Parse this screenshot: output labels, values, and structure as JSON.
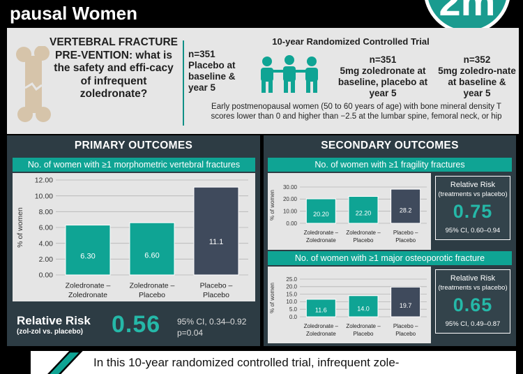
{
  "header": {
    "title": "pausal Women",
    "logo_text": "2m",
    "logo_color": "#1a9b8f"
  },
  "question": "VERTEBRAL FRACTURE PRE-VENTION: what is the safety and effi-cacy of infrequent zoledronate?",
  "trial": {
    "title": "10-year Randomized Controlled Trial",
    "arms": [
      {
        "n": "n=351",
        "label": "Placebo at baseline & year 5"
      },
      {
        "n": "n=351",
        "label": "5mg zoledronate at baseline, placebo at year 5"
      },
      {
        "n": "n=352",
        "label": "5mg zoledro-nate at baseline & year 5"
      }
    ],
    "population": "Early postmenopausal women (50 to 60 years of age) with bone mineral density T scores lower than 0 and higher than −2.5 at the lumbar spine, femoral neck, or hip"
  },
  "primary": {
    "heading": "PRIMARY OUTCOMES",
    "subheading": "No. of women with ≥1 morphometric vertebral fractures",
    "rr_label": "Relative Risk",
    "rr_sub": "(zol-zol vs. placebo)",
    "rr_value": "0.56",
    "rr_ci": "95% CI, 0.34–0.92",
    "rr_p": "p=0.04"
  },
  "secondary": {
    "heading": "SECONDARY OUTCOMES",
    "fragility": {
      "subheading": "No. of women with ≥1 fragility fractures",
      "rr_label": "Relative Risk",
      "rr_sub": "(treatments vs placebo)",
      "rr_value": "0.75",
      "rr_ci": "95% CI,  0.60–0.94"
    },
    "osteoporotic": {
      "subheading": "No. of women with ≥1 major osteoporotic fracture",
      "rr_label": "Relative Risk",
      "rr_sub": "(treatments vs placebo)",
      "rr_value": "0.65",
      "rr_ci": "95% CI,  0.49–0.87"
    }
  },
  "conclusion": "In this 10-year randomized controlled trial, infrequent zole-",
  "colors": {
    "teal": "#0fa494",
    "slate": "#3f4a5c",
    "panel": "#2d3c44"
  },
  "chart_data": [
    {
      "type": "bar",
      "categories": [
        "Zoledronate – Zoledronate",
        "Zoledronate – Placebo",
        "Placebo – Placebo"
      ],
      "values": [
        6.3,
        6.6,
        11.1
      ],
      "value_labels": [
        "6.30",
        "6.60",
        "11.1"
      ],
      "ylabel": "% of women",
      "ylim": [
        0,
        12
      ],
      "yticks": [
        "0.00",
        "2.00",
        "4.00",
        "6.00",
        "8.00",
        "10.00",
        "12.00"
      ],
      "grid": true
    },
    {
      "type": "bar",
      "categories": [
        "Zoledronate – Zoledronate",
        "Zoledronate – Placebo",
        "Placebo – Placebo"
      ],
      "values": [
        20.2,
        22.2,
        28.2
      ],
      "value_labels": [
        "20.20",
        "22.20",
        "28.2"
      ],
      "ylabel": "% of women",
      "ylim": [
        0,
        30
      ],
      "yticks": [
        "0.00",
        "10.00",
        "20.00",
        "30.00"
      ],
      "grid": true
    },
    {
      "type": "bar",
      "categories": [
        "Zoledronate – Zoledronate",
        "Zoledronate – Placebo",
        "Placebo – Placebo"
      ],
      "values": [
        11.6,
        14.0,
        19.7
      ],
      "value_labels": [
        "11.6",
        "14.0",
        "19.7"
      ],
      "ylabel": "% of women",
      "ylim": [
        0,
        25
      ],
      "yticks": [
        "0.0",
        "5.0",
        "10.0",
        "15.0",
        "20.0",
        "25.0"
      ],
      "grid": true
    }
  ]
}
